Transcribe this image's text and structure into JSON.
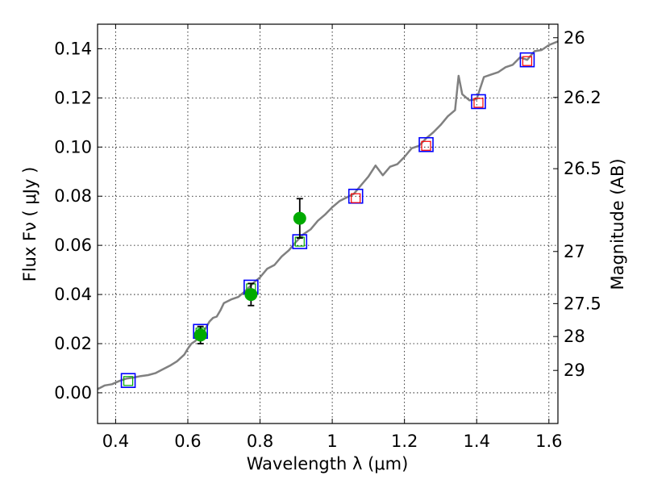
{
  "chart_data": {
    "type": "line",
    "xlabel": "Wavelength  λ (μm)",
    "ylabel": "Flux  Fν  ( μJy )",
    "y2label": "Magnitude (AB)",
    "xlim": [
      0.35,
      1.625
    ],
    "ylim": [
      -0.0125,
      0.15
    ],
    "grid": true,
    "x_ticks": [
      {
        "value": 0.4,
        "label": "0.4"
      },
      {
        "value": 0.6,
        "label": "0.6"
      },
      {
        "value": 0.8,
        "label": "0.8"
      },
      {
        "value": 1.0,
        "label": "1"
      },
      {
        "value": 1.2,
        "label": "1.2"
      },
      {
        "value": 1.4,
        "label": "1.4"
      },
      {
        "value": 1.6,
        "label": "1.6"
      }
    ],
    "y_ticks": [
      {
        "value": 0.0,
        "label": "0.00"
      },
      {
        "value": 0.02,
        "label": "0.02"
      },
      {
        "value": 0.04,
        "label": "0.04"
      },
      {
        "value": 0.06,
        "label": "0.06"
      },
      {
        "value": 0.08,
        "label": "0.08"
      },
      {
        "value": 0.1,
        "label": "0.10"
      },
      {
        "value": 0.12,
        "label": "0.12"
      },
      {
        "value": 0.14,
        "label": "0.14"
      }
    ],
    "y2_ticks": [
      {
        "label": "26",
        "flux": 0.1445
      },
      {
        "label": "26.2",
        "flux": 0.1202
      },
      {
        "label": "26.5",
        "flux": 0.0912
      },
      {
        "label": "27",
        "flux": 0.0575
      },
      {
        "label": "27.5",
        "flux": 0.0363
      },
      {
        "label": "28",
        "flux": 0.0229
      },
      {
        "label": "29",
        "flux": 0.0091
      }
    ],
    "series": [
      {
        "kind": "template-spectrum",
        "color": "#808080",
        "x": [
          0.35,
          0.37,
          0.39,
          0.41,
          0.43,
          0.45,
          0.47,
          0.49,
          0.51,
          0.53,
          0.55,
          0.57,
          0.59,
          0.6,
          0.61,
          0.62,
          0.63,
          0.64,
          0.65,
          0.66,
          0.67,
          0.68,
          0.69,
          0.7,
          0.72,
          0.74,
          0.76,
          0.78,
          0.8,
          0.82,
          0.84,
          0.86,
          0.88,
          0.9,
          0.92,
          0.94,
          0.96,
          0.98,
          1.0,
          1.02,
          1.04,
          1.06,
          1.08,
          1.1,
          1.12,
          1.14,
          1.16,
          1.18,
          1.2,
          1.22,
          1.24,
          1.26,
          1.28,
          1.3,
          1.32,
          1.34,
          1.35,
          1.36,
          1.38,
          1.4,
          1.42,
          1.44,
          1.46,
          1.48,
          1.5,
          1.52,
          1.54,
          1.56,
          1.58,
          1.6,
          1.625
        ],
        "values": [
          0.0015,
          0.003,
          0.0035,
          0.0048,
          0.0058,
          0.0062,
          0.0068,
          0.0072,
          0.008,
          0.0095,
          0.011,
          0.0128,
          0.0155,
          0.018,
          0.02,
          0.021,
          0.0225,
          0.024,
          0.0265,
          0.029,
          0.0305,
          0.031,
          0.0335,
          0.0365,
          0.038,
          0.039,
          0.0415,
          0.0445,
          0.047,
          0.0505,
          0.052,
          0.0555,
          0.058,
          0.0615,
          0.0645,
          0.0665,
          0.07,
          0.0725,
          0.0755,
          0.078,
          0.0795,
          0.081,
          0.0845,
          0.088,
          0.0925,
          0.0885,
          0.092,
          0.093,
          0.096,
          0.0995,
          0.1005,
          0.1035,
          0.106,
          0.109,
          0.1125,
          0.115,
          0.129,
          0.1215,
          0.119,
          0.1195,
          0.1285,
          0.1295,
          0.1305,
          0.1325,
          0.1335,
          0.1365,
          0.1355,
          0.139,
          0.1395,
          0.1415,
          0.143
        ]
      },
      {
        "kind": "model-fluxes",
        "marker": "open-square",
        "color": "#0000ff",
        "x": [
          0.435,
          0.635,
          0.775,
          0.91,
          1.065,
          1.26,
          1.405,
          1.54
        ],
        "values": [
          0.005,
          0.025,
          0.043,
          0.0615,
          0.08,
          0.101,
          0.1185,
          0.1355
        ]
      },
      {
        "kind": "observed-fluxes",
        "marker": "small-open-square",
        "colors": [
          "#00aa00",
          "#00aa00",
          "#00aa00",
          "#00aa00",
          "#ff0000",
          "#ff0000",
          "#ff0000",
          "#ff0000"
        ],
        "x": [
          0.435,
          0.635,
          0.775,
          0.91,
          1.065,
          1.26,
          1.405,
          1.54
        ],
        "values": [
          0.0048,
          0.0245,
          0.0425,
          0.0615,
          0.0792,
          0.1005,
          0.118,
          0.135
        ]
      },
      {
        "kind": "photometry",
        "marker": "filled-circle",
        "color": "#00aa00",
        "x": [
          0.635,
          0.775,
          0.91
        ],
        "values": [
          0.0235,
          0.04,
          0.071
        ],
        "errors": [
          0.0035,
          0.0045,
          0.008
        ]
      }
    ]
  }
}
